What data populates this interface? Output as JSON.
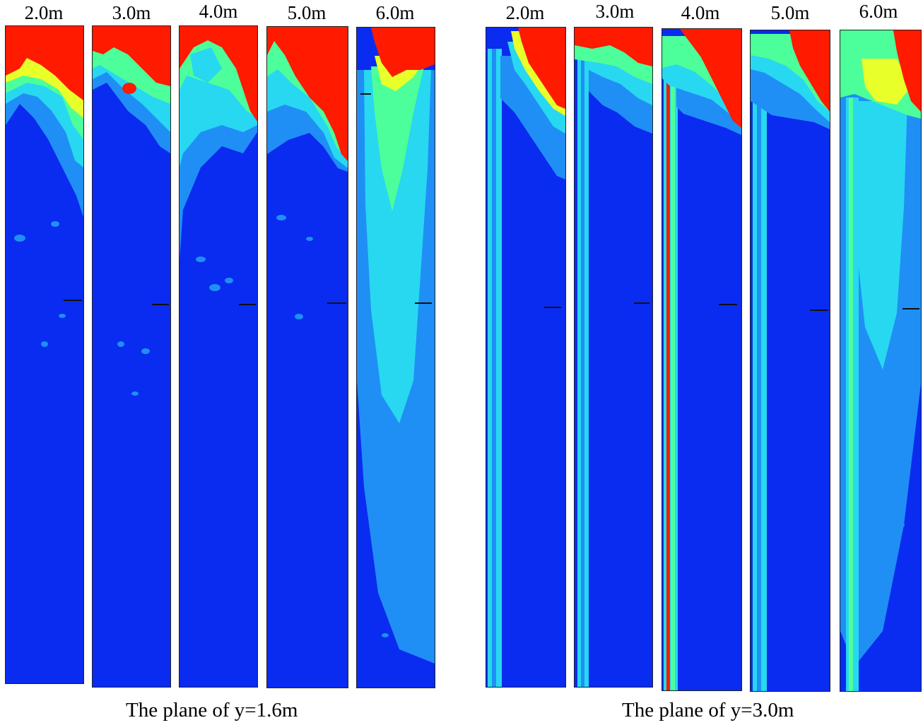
{
  "groups": [
    {
      "caption": "The plane of y=1.6m",
      "panels": [
        {
          "label": "2.0m"
        },
        {
          "label": "3.0m"
        },
        {
          "label": "4.0m"
        },
        {
          "label": "5.0m"
        },
        {
          "label": "6.0m"
        }
      ]
    },
    {
      "caption": "The plane of y=3.0m",
      "panels": [
        {
          "label": "2.0m"
        },
        {
          "label": "3.0m"
        },
        {
          "label": "4.0m"
        },
        {
          "label": "5.0m"
        },
        {
          "label": "6.0m"
        }
      ]
    }
  ],
  "colors": {
    "background_field": "#0a2bf0",
    "low": "#1f8ff5",
    "mid_low": "#27d8f0",
    "mid": "#4dff9a",
    "mid_high": "#e8ff2a",
    "high_edge": "#ffb000",
    "high": "#ff1a00"
  }
}
